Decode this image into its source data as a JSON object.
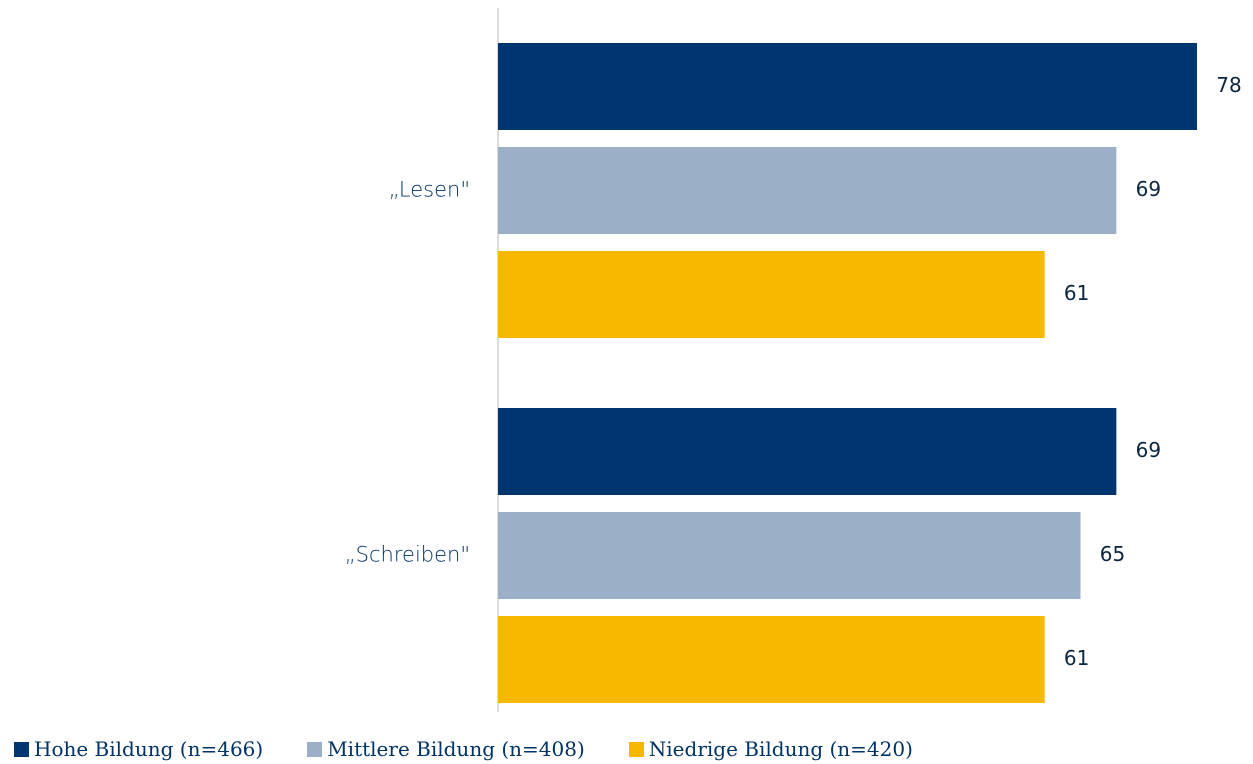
{
  "chart_data": {
    "type": "bar",
    "orientation": "horizontal",
    "categories": [
      "„Lesen\"",
      "„Schreiben\""
    ],
    "series": [
      {
        "name": "Hohe Bildung (n=466)",
        "color": "#003670",
        "values": [
          78,
          69
        ]
      },
      {
        "name": "Mittlere Bildung (n=408)",
        "color": "#9bb0c7",
        "values": [
          69,
          65
        ]
      },
      {
        "name": "Niedrige Bildung (n=420)",
        "color": "#f9b800",
        "values": [
          61,
          61
        ]
      }
    ],
    "data_labels": true,
    "xlim": [
      0,
      78
    ],
    "grid": false,
    "legend_position": "bottom-left"
  }
}
